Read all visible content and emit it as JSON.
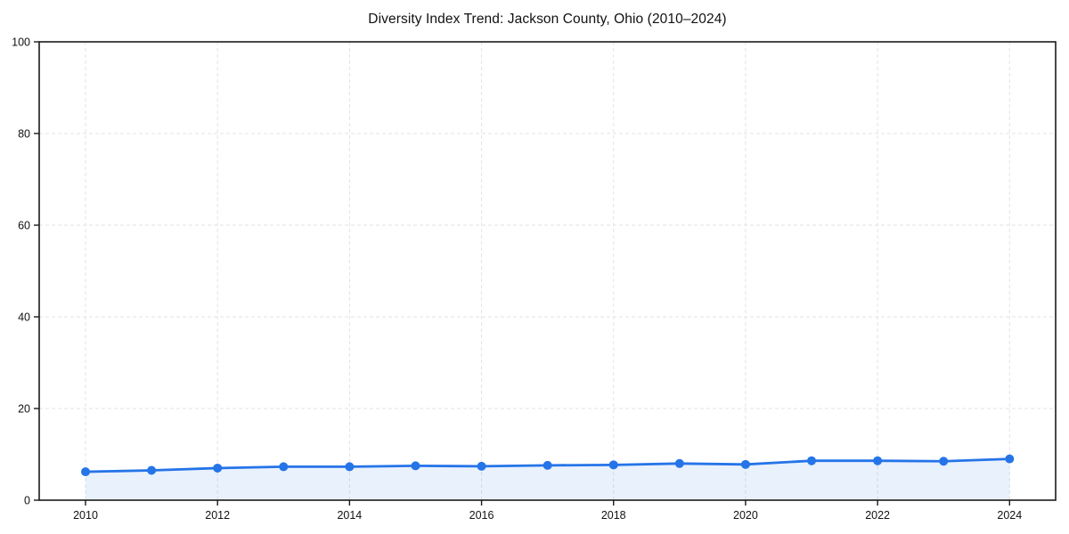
{
  "title": "Diversity Index Trend: Jackson County, Ohio (2010–2024)",
  "chart_data": {
    "type": "area",
    "title": "Diversity Index Trend: Jackson County, Ohio (2010–2024)",
    "x": [
      2010,
      2011,
      2012,
      2013,
      2014,
      2015,
      2016,
      2017,
      2018,
      2019,
      2020,
      2021,
      2022,
      2023,
      2024
    ],
    "series": [
      {
        "name": "Diversity Index",
        "values": [
          6.2,
          6.5,
          7.0,
          7.3,
          7.3,
          7.5,
          7.4,
          7.6,
          7.7,
          8.0,
          7.8,
          8.6,
          8.6,
          8.5,
          9.0
        ]
      }
    ],
    "xlabel": "",
    "ylabel": "",
    "xlim": [
      2009.3,
      2024.7
    ],
    "ylim": [
      0,
      100
    ],
    "xticks": [
      "2010",
      "2012",
      "2014",
      "2016",
      "2018",
      "2020",
      "2022",
      "2024"
    ],
    "yticks": [
      "0",
      "20",
      "40",
      "60",
      "80",
      "100"
    ],
    "grid": "dashed, vertical at labeled years and horizontal every 20",
    "legend": "none",
    "markers": "filled circles at every year",
    "colors": {
      "line": "#2574e8",
      "marker": "#2574e8",
      "fill": "rgba(37,116,232,0.10)",
      "grid": "#e3e3e3",
      "spine": "#1a1a1a",
      "tick_text": "#111111",
      "background": "#ffffff"
    }
  }
}
